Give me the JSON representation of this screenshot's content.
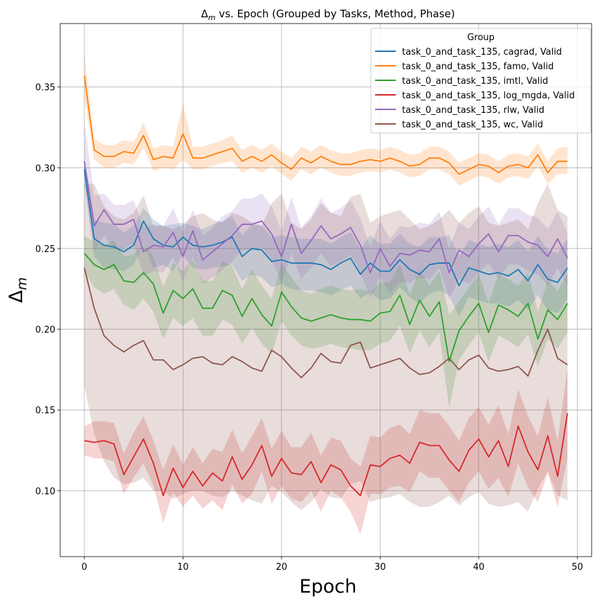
{
  "chart_data": {
    "type": "line",
    "title": "Δm vs. Epoch (Grouped by Tasks, Method, Phase)",
    "title_main": "Δ",
    "title_sub": "m",
    "title_rest": " vs. Epoch (Grouped by Tasks, Method, Phase)",
    "xlabel": "Epoch",
    "ylabel_main": "Δ",
    "ylabel_sub": "m",
    "xlim": [
      -2.45,
      51.45
    ],
    "ylim": [
      0.0592,
      0.3893
    ],
    "xticks": [
      0,
      10,
      20,
      30,
      40,
      50
    ],
    "xtick_labels": [
      "0",
      "10",
      "20",
      "30",
      "40",
      "50"
    ],
    "yticks": [
      0.1,
      0.15,
      0.2,
      0.25,
      0.3,
      0.35
    ],
    "ytick_labels": [
      "0.10",
      "0.15",
      "0.20",
      "0.25",
      "0.30",
      "0.35"
    ],
    "grid": true,
    "legend_title": "Group",
    "legend_position": "top-right",
    "x": [
      0,
      1,
      2,
      3,
      4,
      5,
      6,
      7,
      8,
      9,
      10,
      11,
      12,
      13,
      14,
      15,
      16,
      17,
      18,
      19,
      20,
      21,
      22,
      23,
      24,
      25,
      26,
      27,
      28,
      29,
      30,
      31,
      32,
      33,
      34,
      35,
      36,
      37,
      38,
      39,
      40,
      41,
      42,
      43,
      44,
      45,
      46,
      47,
      48,
      49
    ],
    "series": [
      {
        "name": "task_0_and_task_135, cagrad, Valid",
        "color": "#1f77b4",
        "values": [
          0.299,
          0.256,
          0.252,
          0.251,
          0.248,
          0.252,
          0.267,
          0.256,
          0.252,
          0.251,
          0.257,
          0.252,
          0.251,
          0.252,
          0.254,
          0.257,
          0.245,
          0.25,
          0.249,
          0.242,
          0.243,
          0.241,
          0.241,
          0.241,
          0.24,
          0.237,
          0.241,
          0.244,
          0.234,
          0.241,
          0.236,
          0.236,
          0.243,
          0.237,
          0.234,
          0.24,
          0.241,
          0.241,
          0.227,
          0.238,
          0.236,
          0.234,
          0.235,
          0.233,
          0.237,
          0.23,
          0.24,
          0.231,
          0.229,
          0.238
        ],
        "lower": [
          0.292,
          0.245,
          0.238,
          0.237,
          0.236,
          0.24,
          0.253,
          0.238,
          0.24,
          0.236,
          0.246,
          0.238,
          0.237,
          0.238,
          0.239,
          0.24,
          0.23,
          0.234,
          0.232,
          0.226,
          0.228,
          0.225,
          0.224,
          0.224,
          0.223,
          0.221,
          0.224,
          0.227,
          0.219,
          0.223,
          0.218,
          0.219,
          0.226,
          0.22,
          0.216,
          0.222,
          0.224,
          0.221,
          0.208,
          0.22,
          0.218,
          0.216,
          0.216,
          0.214,
          0.218,
          0.212,
          0.221,
          0.212,
          0.21,
          0.219
        ],
        "upper": [
          0.306,
          0.268,
          0.266,
          0.265,
          0.26,
          0.264,
          0.275,
          0.268,
          0.264,
          0.265,
          0.266,
          0.264,
          0.262,
          0.265,
          0.267,
          0.27,
          0.258,
          0.265,
          0.264,
          0.257,
          0.258,
          0.257,
          0.256,
          0.256,
          0.256,
          0.253,
          0.257,
          0.26,
          0.25,
          0.258,
          0.253,
          0.253,
          0.259,
          0.253,
          0.251,
          0.257,
          0.257,
          0.258,
          0.245,
          0.255,
          0.253,
          0.251,
          0.253,
          0.251,
          0.255,
          0.248,
          0.258,
          0.249,
          0.247,
          0.256
        ]
      },
      {
        "name": "task_0_and_task_135, famo, Valid",
        "color": "#ff7f0e",
        "values": [
          0.357,
          0.311,
          0.307,
          0.307,
          0.31,
          0.309,
          0.32,
          0.305,
          0.307,
          0.306,
          0.321,
          0.306,
          0.306,
          0.308,
          0.31,
          0.312,
          0.304,
          0.307,
          0.304,
          0.308,
          0.303,
          0.299,
          0.306,
          0.303,
          0.307,
          0.304,
          0.302,
          0.302,
          0.304,
          0.305,
          0.304,
          0.306,
          0.304,
          0.301,
          0.302,
          0.306,
          0.306,
          0.303,
          0.296,
          0.299,
          0.302,
          0.301,
          0.297,
          0.301,
          0.302,
          0.3,
          0.308,
          0.297,
          0.304,
          0.304
        ],
        "lower": [
          0.343,
          0.305,
          0.3,
          0.3,
          0.303,
          0.302,
          0.312,
          0.298,
          0.3,
          0.299,
          0.305,
          0.299,
          0.299,
          0.301,
          0.303,
          0.304,
          0.297,
          0.3,
          0.297,
          0.301,
          0.296,
          0.292,
          0.299,
          0.296,
          0.3,
          0.297,
          0.295,
          0.295,
          0.297,
          0.298,
          0.297,
          0.299,
          0.297,
          0.294,
          0.295,
          0.299,
          0.299,
          0.296,
          0.289,
          0.292,
          0.295,
          0.294,
          0.29,
          0.294,
          0.295,
          0.293,
          0.301,
          0.29,
          0.296,
          0.296
        ],
        "upper": [
          0.371,
          0.318,
          0.314,
          0.314,
          0.317,
          0.316,
          0.328,
          0.312,
          0.314,
          0.313,
          0.34,
          0.313,
          0.313,
          0.315,
          0.317,
          0.32,
          0.311,
          0.314,
          0.311,
          0.315,
          0.31,
          0.306,
          0.313,
          0.31,
          0.314,
          0.311,
          0.309,
          0.309,
          0.311,
          0.312,
          0.311,
          0.313,
          0.311,
          0.308,
          0.309,
          0.313,
          0.313,
          0.31,
          0.303,
          0.306,
          0.309,
          0.308,
          0.304,
          0.308,
          0.309,
          0.307,
          0.315,
          0.304,
          0.312,
          0.313
        ]
      },
      {
        "name": "task_0_and_task_135, imtl, Valid",
        "color": "#2ca02c",
        "values": [
          0.247,
          0.24,
          0.237,
          0.24,
          0.23,
          0.229,
          0.235,
          0.228,
          0.21,
          0.224,
          0.219,
          0.225,
          0.213,
          0.213,
          0.224,
          0.221,
          0.208,
          0.219,
          0.209,
          0.202,
          0.223,
          0.214,
          0.207,
          0.205,
          0.207,
          0.209,
          0.207,
          0.206,
          0.206,
          0.205,
          0.21,
          0.211,
          0.221,
          0.203,
          0.218,
          0.208,
          0.217,
          0.18,
          0.199,
          0.208,
          0.216,
          0.198,
          0.215,
          0.212,
          0.208,
          0.216,
          0.194,
          0.212,
          0.206,
          0.216
        ],
        "lower": [
          0.236,
          0.226,
          0.222,
          0.225,
          0.215,
          0.212,
          0.219,
          0.211,
          0.194,
          0.207,
          0.202,
          0.207,
          0.196,
          0.196,
          0.206,
          0.203,
          0.191,
          0.201,
          0.191,
          0.185,
          0.205,
          0.196,
          0.19,
          0.188,
          0.189,
          0.191,
          0.189,
          0.188,
          0.187,
          0.187,
          0.191,
          0.193,
          0.202,
          0.185,
          0.199,
          0.189,
          0.198,
          0.151,
          0.181,
          0.19,
          0.198,
          0.18,
          0.196,
          0.193,
          0.189,
          0.197,
          0.177,
          0.194,
          0.188,
          0.198
        ],
        "upper": [
          0.258,
          0.254,
          0.252,
          0.255,
          0.245,
          0.246,
          0.252,
          0.245,
          0.226,
          0.241,
          0.236,
          0.243,
          0.23,
          0.23,
          0.242,
          0.239,
          0.225,
          0.237,
          0.227,
          0.219,
          0.241,
          0.232,
          0.224,
          0.222,
          0.225,
          0.227,
          0.225,
          0.224,
          0.225,
          0.223,
          0.229,
          0.229,
          0.24,
          0.221,
          0.237,
          0.227,
          0.236,
          0.209,
          0.217,
          0.226,
          0.234,
          0.216,
          0.234,
          0.231,
          0.227,
          0.235,
          0.211,
          0.23,
          0.224,
          0.234
        ]
      },
      {
        "name": "task_0_and_task_135, log_mgda, Valid",
        "color": "#d62728",
        "values": [
          0.131,
          0.13,
          0.131,
          0.129,
          0.11,
          0.121,
          0.132,
          0.117,
          0.097,
          0.114,
          0.102,
          0.112,
          0.103,
          0.111,
          0.106,
          0.121,
          0.107,
          0.116,
          0.128,
          0.109,
          0.12,
          0.111,
          0.11,
          0.118,
          0.105,
          0.116,
          0.113,
          0.103,
          0.097,
          0.116,
          0.115,
          0.12,
          0.122,
          0.117,
          0.13,
          0.128,
          0.128,
          0.119,
          0.112,
          0.125,
          0.132,
          0.121,
          0.131,
          0.115,
          0.14,
          0.124,
          0.113,
          0.134,
          0.109,
          0.148
        ],
        "lower": [
          0.122,
          0.12,
          0.12,
          0.118,
          0.098,
          0.108,
          0.117,
          0.103,
          0.08,
          0.099,
          0.09,
          0.097,
          0.089,
          0.094,
          0.088,
          0.104,
          0.092,
          0.098,
          0.112,
          0.092,
          0.103,
          0.095,
          0.093,
          0.1,
          0.087,
          0.1,
          0.096,
          0.087,
          0.073,
          0.098,
          0.098,
          0.102,
          0.103,
          0.099,
          0.112,
          0.108,
          0.108,
          0.1,
          0.093,
          0.105,
          0.112,
          0.101,
          0.108,
          0.096,
          0.117,
          0.102,
          0.093,
          0.111,
          0.09,
          0.12
        ],
        "upper": [
          0.14,
          0.143,
          0.143,
          0.142,
          0.123,
          0.136,
          0.146,
          0.131,
          0.113,
          0.129,
          0.116,
          0.127,
          0.117,
          0.126,
          0.124,
          0.138,
          0.123,
          0.134,
          0.145,
          0.126,
          0.137,
          0.127,
          0.127,
          0.136,
          0.122,
          0.133,
          0.131,
          0.12,
          0.115,
          0.134,
          0.133,
          0.139,
          0.141,
          0.135,
          0.15,
          0.148,
          0.148,
          0.14,
          0.131,
          0.145,
          0.152,
          0.141,
          0.153,
          0.135,
          0.163,
          0.146,
          0.134,
          0.158,
          0.131,
          0.176
        ]
      },
      {
        "name": "task_0_and_task_135, rlw, Valid",
        "color": "#9467bd",
        "values": [
          0.304,
          0.264,
          0.274,
          0.265,
          0.265,
          0.268,
          0.248,
          0.252,
          0.251,
          0.26,
          0.245,
          0.261,
          0.243,
          0.248,
          0.253,
          0.258,
          0.265,
          0.265,
          0.267,
          0.259,
          0.245,
          0.265,
          0.247,
          0.255,
          0.264,
          0.256,
          0.259,
          0.263,
          0.252,
          0.235,
          0.25,
          0.239,
          0.247,
          0.246,
          0.249,
          0.248,
          0.256,
          0.235,
          0.249,
          0.245,
          0.253,
          0.259,
          0.248,
          0.258,
          0.258,
          0.254,
          0.252,
          0.245,
          0.256,
          0.244
        ],
        "lower": [
          0.29,
          0.248,
          0.258,
          0.25,
          0.25,
          0.253,
          0.233,
          0.236,
          0.235,
          0.245,
          0.229,
          0.245,
          0.228,
          0.232,
          0.237,
          0.242,
          0.249,
          0.249,
          0.251,
          0.243,
          0.229,
          0.247,
          0.231,
          0.238,
          0.247,
          0.239,
          0.242,
          0.246,
          0.235,
          0.219,
          0.233,
          0.222,
          0.229,
          0.229,
          0.232,
          0.231,
          0.238,
          0.219,
          0.231,
          0.228,
          0.235,
          0.241,
          0.231,
          0.24,
          0.24,
          0.236,
          0.234,
          0.227,
          0.238,
          0.227
        ],
        "upper": [
          0.328,
          0.283,
          0.284,
          0.277,
          0.277,
          0.28,
          0.263,
          0.265,
          0.264,
          0.275,
          0.26,
          0.274,
          0.258,
          0.263,
          0.27,
          0.273,
          0.281,
          0.281,
          0.284,
          0.276,
          0.261,
          0.282,
          0.263,
          0.27,
          0.281,
          0.272,
          0.275,
          0.28,
          0.268,
          0.251,
          0.267,
          0.256,
          0.264,
          0.263,
          0.266,
          0.265,
          0.273,
          0.25,
          0.266,
          0.262,
          0.27,
          0.276,
          0.265,
          0.275,
          0.275,
          0.271,
          0.269,
          0.262,
          0.273,
          0.26
        ]
      },
      {
        "name": "task_0_and_task_135, wc, Valid",
        "color": "#8c564b",
        "values": [
          0.238,
          0.213,
          0.196,
          0.19,
          0.186,
          0.19,
          0.193,
          0.181,
          0.181,
          0.175,
          0.178,
          0.182,
          0.183,
          0.179,
          0.178,
          0.183,
          0.18,
          0.176,
          0.174,
          0.187,
          0.183,
          0.176,
          0.17,
          0.176,
          0.185,
          0.18,
          0.179,
          0.19,
          0.192,
          0.176,
          0.178,
          0.18,
          0.182,
          0.176,
          0.172,
          0.173,
          0.177,
          0.182,
          0.175,
          0.181,
          0.184,
          0.176,
          0.174,
          0.175,
          0.177,
          0.171,
          0.187,
          0.2,
          0.182,
          0.178
        ],
        "lower": [
          0.165,
          0.135,
          0.118,
          0.108,
          0.104,
          0.105,
          0.108,
          0.1,
          0.1,
          0.095,
          0.098,
          0.1,
          0.1,
          0.097,
          0.096,
          0.1,
          0.097,
          0.094,
          0.092,
          0.103,
          0.099,
          0.093,
          0.088,
          0.093,
          0.101,
          0.096,
          0.095,
          0.104,
          0.106,
          0.093,
          0.095,
          0.096,
          0.098,
          0.093,
          0.09,
          0.09,
          0.093,
          0.097,
          0.091,
          0.096,
          0.099,
          0.092,
          0.09,
          0.091,
          0.093,
          0.087,
          0.101,
          0.112,
          0.097,
          0.094
        ],
        "upper": [
          0.29,
          0.29,
          0.276,
          0.27,
          0.268,
          0.272,
          0.283,
          0.264,
          0.264,
          0.262,
          0.265,
          0.27,
          0.272,
          0.268,
          0.266,
          0.272,
          0.27,
          0.266,
          0.264,
          0.278,
          0.284,
          0.266,
          0.262,
          0.268,
          0.278,
          0.272,
          0.27,
          0.282,
          0.284,
          0.266,
          0.27,
          0.272,
          0.274,
          0.268,
          0.262,
          0.264,
          0.268,
          0.274,
          0.266,
          0.272,
          0.276,
          0.266,
          0.264,
          0.266,
          0.268,
          0.262,
          0.278,
          0.29,
          0.274,
          0.27
        ]
      }
    ]
  }
}
